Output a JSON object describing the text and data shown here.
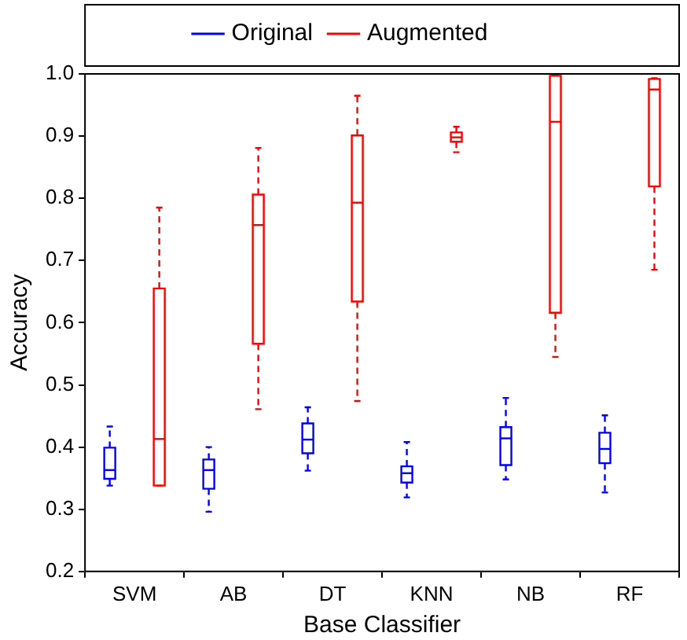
{
  "chart_data": {
    "type": "box",
    "xlabel": "Base Classifier",
    "ylabel": "Accuracy",
    "categories": [
      "SVM",
      "AB",
      "DT",
      "KNN",
      "NB",
      "RF"
    ],
    "ylim": [
      0.2,
      1.0
    ],
    "yticks": [
      0.2,
      0.3,
      0.4,
      0.5,
      0.6,
      0.7,
      0.8,
      0.9,
      {
        "value": 1.0,
        "label": "1.0"
      }
    ],
    "grid": false,
    "legend": "top",
    "series": [
      {
        "name": "Original",
        "color": "#0000ff",
        "boxes": [
          {
            "low": 0.338,
            "q1": 0.349,
            "median": 0.363,
            "q3": 0.399,
            "high": 0.433
          },
          {
            "low": 0.296,
            "q1": 0.333,
            "median": 0.363,
            "q3": 0.38,
            "high": 0.4
          },
          {
            "low": 0.362,
            "q1": 0.39,
            "median": 0.412,
            "q3": 0.438,
            "high": 0.464
          },
          {
            "low": 0.319,
            "q1": 0.343,
            "median": 0.358,
            "q3": 0.369,
            "high": 0.408
          },
          {
            "low": 0.348,
            "q1": 0.371,
            "median": 0.414,
            "q3": 0.432,
            "high": 0.479
          },
          {
            "low": 0.327,
            "q1": 0.374,
            "median": 0.397,
            "q3": 0.423,
            "high": 0.451
          }
        ]
      },
      {
        "name": "Augmented",
        "color": "#ff0000",
        "boxes": [
          {
            "low": 0.338,
            "q1": 0.338,
            "median": 0.413,
            "q3": 0.655,
            "high": 0.785
          },
          {
            "low": 0.461,
            "q1": 0.566,
            "median": 0.757,
            "q3": 0.806,
            "high": 0.881
          },
          {
            "low": 0.474,
            "q1": 0.634,
            "median": 0.793,
            "q3": 0.901,
            "high": 0.965
          },
          {
            "low": 0.874,
            "q1": 0.891,
            "median": 0.898,
            "q3": 0.906,
            "high": 0.915
          },
          {
            "low": 0.545,
            "q1": 0.616,
            "median": 0.923,
            "q3": 0.997,
            "high": 0.998
          },
          {
            "low": 0.685,
            "q1": 0.819,
            "median": 0.975,
            "q3": 0.992,
            "high": 0.993
          }
        ]
      }
    ]
  }
}
